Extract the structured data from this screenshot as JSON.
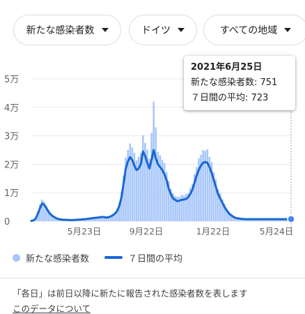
{
  "filters": {
    "metric": "新たな感染者数",
    "location": "ドイツ",
    "region": "すべての地域"
  },
  "tooltip": {
    "date": "2021年6月25日",
    "new_cases": "新たな感染者数: 751",
    "seven_day_avg": "７日間の平均: 723"
  },
  "legend": {
    "new_cases": "新たな感染者数",
    "seven_day_avg": "７日間の平均"
  },
  "footnote": "「各日」は前日以降に新たに報告された感染者数を表します",
  "about_link": "このデータについて",
  "colors": {
    "bars": "#a8c7fa",
    "line": "#1967d2",
    "marker": "#4285f4"
  },
  "chart_data": {
    "type": "bar",
    "y_ticks": [
      "0",
      "1万",
      "2万",
      "3万",
      "4万",
      "5万"
    ],
    "x_ticks": [
      "5月23日",
      "9月22日",
      "1月22日",
      "5月24日"
    ],
    "ylim": [
      0,
      50000
    ],
    "grid": true,
    "series": [
      {
        "name": "新たな感染者数",
        "style": "bar"
      },
      {
        "name": "７日間の平均",
        "style": "line"
      }
    ],
    "x": [
      0,
      4,
      8,
      12,
      16,
      20,
      24,
      28,
      32,
      36,
      40,
      44,
      48,
      52,
      56,
      60,
      64,
      68,
      72,
      76,
      80,
      84,
      88,
      92,
      96,
      100,
      104,
      108,
      112,
      116,
      120,
      124,
      128,
      132,
      136,
      140,
      144,
      148,
      152,
      156,
      160,
      164,
      168,
      172,
      176,
      180,
      184,
      188,
      192,
      196,
      200,
      204,
      208,
      212,
      216,
      220,
      224,
      228,
      232,
      236,
      240,
      244,
      248,
      252,
      256,
      260,
      264,
      268,
      272,
      276,
      280,
      284,
      288,
      292,
      296,
      300,
      304,
      308,
      312,
      316,
      320,
      324,
      328,
      332,
      336,
      340,
      344,
      348,
      352,
      356,
      360,
      364,
      368,
      372,
      376,
      380,
      384,
      388,
      392,
      396,
      400,
      404,
      408,
      412,
      416,
      420,
      424,
      428,
      432,
      436,
      440,
      444,
      448,
      452,
      456,
      460,
      464,
      468,
      472,
      476,
      480,
      484
    ],
    "values": [
      100,
      300,
      900,
      2500,
      4500,
      6200,
      5800,
      4600,
      3300,
      2400,
      1800,
      1300,
      900,
      700,
      600,
      500,
      500,
      450,
      400,
      400,
      450,
      500,
      550,
      600,
      650,
      700,
      800,
      900,
      1000,
      1100,
      1200,
      1300,
      1400,
      1500,
      1400,
      1300,
      1400,
      1700,
      2100,
      2700,
      3600,
      5400,
      8500,
      13500,
      18500,
      21000,
      22500,
      21500,
      19500,
      18000,
      18500,
      20000,
      24500,
      23000,
      20500,
      18500,
      21500,
      25000,
      22000,
      20000,
      19000,
      18000,
      16500,
      14500,
      11500,
      9500,
      8000,
      7500,
      7000,
      7200,
      7500,
      7600,
      7800,
      8300,
      9500,
      11000,
      13500,
      16000,
      18000,
      19500,
      20500,
      20800,
      20500,
      19000,
      17000,
      14500,
      12000,
      9500,
      8000,
      6500,
      5000,
      3800,
      2800,
      2100,
      1600,
      1200,
      1000,
      900,
      800,
      750,
      700,
      700,
      700,
      700,
      700,
      700,
      700,
      700,
      700,
      700,
      700,
      700,
      700,
      700,
      700,
      700,
      700,
      700,
      700,
      700,
      700,
      723
    ],
    "bar_values": [
      150,
      420,
      1200,
      3300,
      5900,
      7600,
      6900,
      5400,
      3900,
      2900,
      2100,
      1600,
      1100,
      800,
      750,
      600,
      650,
      520,
      480,
      460,
      560,
      600,
      700,
      720,
      810,
      840,
      1000,
      1080,
      1240,
      1300,
      1500,
      1540,
      1720,
      1760,
      1660,
      1520,
      1700,
      2000,
      2500,
      3200,
      4300,
      6400,
      10200,
      16000,
      22400,
      25000,
      27300,
      25900,
      24000,
      21400,
      22600,
      24000,
      30200,
      27500,
      25100,
      22000,
      31000,
      42000,
      33000,
      24300,
      23100,
      21500,
      20400,
      17300,
      14100,
      11300,
      9800,
      8900,
      8600,
      8500,
      9300,
      9000,
      9600,
      9800,
      11700,
      13000,
      16600,
      19000,
      22100,
      23300,
      25000,
      24700,
      25300,
      22600,
      20800,
      17200,
      14700,
      11200,
      9800,
      7700,
      6100,
      4500,
      3400,
      2500,
      1950,
      1420,
      1230,
      1060,
      990,
      880,
      860,
      820,
      850,
      820,
      860,
      830,
      850,
      820,
      860,
      820,
      860,
      820,
      840,
      820,
      830,
      800,
      820,
      790,
      770,
      751
    ],
    "selected_point": {
      "date": "2021年6月25日",
      "new_cases": 751,
      "seven_day_avg": 723
    }
  }
}
